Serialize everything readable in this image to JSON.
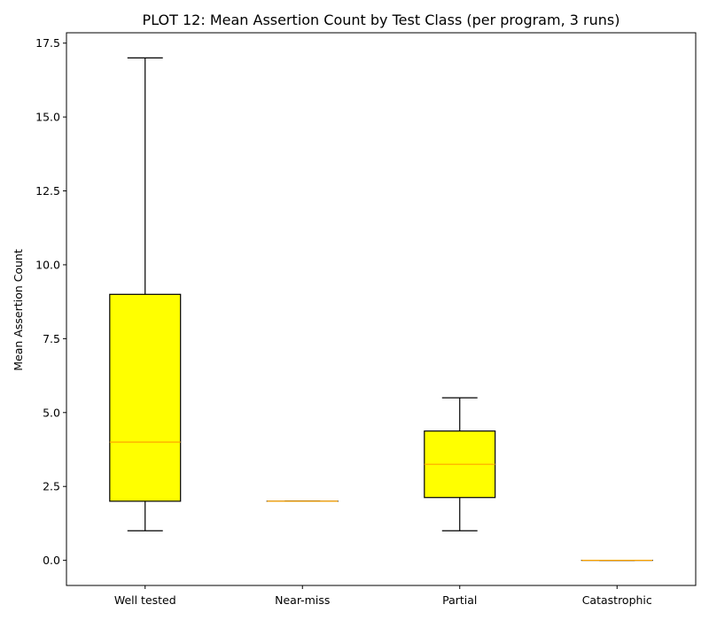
{
  "chart_data": {
    "type": "box",
    "title": "PLOT 12: Mean Assertion Count by Test Class (per program, 3 runs)",
    "xlabel": "",
    "ylabel": "Mean Assertion Count",
    "ylim": [
      -0.85,
      17.85
    ],
    "yticks": [
      0.0,
      2.5,
      5.0,
      7.5,
      10.0,
      12.5,
      15.0,
      17.5
    ],
    "ytick_labels": [
      "0.0",
      "2.5",
      "5.0",
      "7.5",
      "10.0",
      "12.5",
      "15.0",
      "17.5"
    ],
    "categories": [
      "Well tested",
      "Near-miss",
      "Partial",
      "Catastrophic"
    ],
    "boxes": [
      {
        "category": "Well tested",
        "min": 1.0,
        "q1": 2.0,
        "median": 4.0,
        "q3": 9.0,
        "max": 17.0
      },
      {
        "category": "Near-miss",
        "min": 2.0,
        "q1": 2.0,
        "median": 2.0,
        "q3": 2.0,
        "max": 2.0
      },
      {
        "category": "Partial",
        "min": 1.0,
        "q1": 2.125,
        "median": 3.25,
        "q3": 4.375,
        "max": 5.5
      },
      {
        "category": "Catastrophic",
        "min": 0.0,
        "q1": 0.0,
        "median": 0.0,
        "q3": 0.0,
        "max": 0.0
      }
    ],
    "grid": false,
    "box_color": "#ffff00",
    "median_color": "#ffa500",
    "edge_color": "#000000"
  }
}
